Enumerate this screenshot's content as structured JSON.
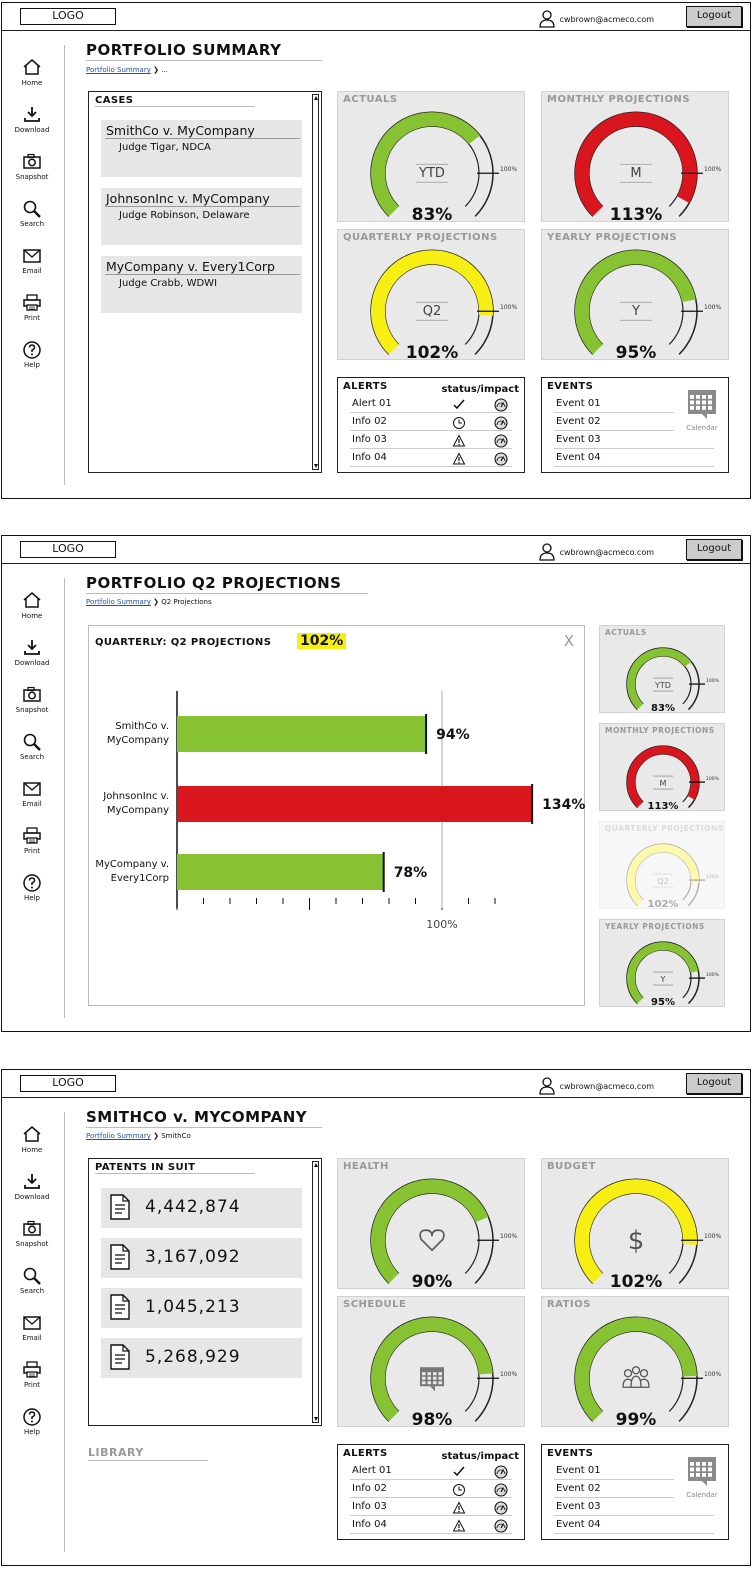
{
  "app": {
    "logo": "LOGO",
    "user_email": "cwbrown@acmeco.com",
    "logout_label": "Logout"
  },
  "sidebar": {
    "items": [
      {
        "label": "Home",
        "icon": "home-icon"
      },
      {
        "label": "Download",
        "icon": "download-icon"
      },
      {
        "label": "Snapshot",
        "icon": "camera-icon"
      },
      {
        "label": "Search",
        "icon": "search-icon"
      },
      {
        "label": "Email",
        "icon": "email-icon"
      },
      {
        "label": "Print",
        "icon": "print-icon"
      },
      {
        "label": "Help",
        "icon": "help-icon"
      }
    ]
  },
  "colors": {
    "green": "#86c232",
    "red": "#d9161d",
    "yellow": "#f7ef14",
    "gauge_bg": "#e9e9e9",
    "muted": "#999999"
  },
  "screen1": {
    "title": "PORTFOLIO SUMMARY",
    "breadcrumb": {
      "link": "Portfolio Summary",
      "current": "..."
    },
    "cases": {
      "title": "CASES",
      "items": [
        {
          "name": "SmithCo v. MyCompany",
          "judge": "Judge Tigar, NDCA"
        },
        {
          "name": "JohnsonInc v. MyCompany",
          "judge": "Judge Robinson, Delaware"
        },
        {
          "name": "MyCompany v. Every1Corp",
          "judge": "Judge Crabb, WDWI"
        }
      ]
    },
    "gauges": [
      {
        "title": "ACTUALS",
        "center": "YTD",
        "percent_label": "83%",
        "value": 83,
        "color": "#86c232"
      },
      {
        "title": "MONTHLY PROJECTIONS",
        "center": "M",
        "percent_label": "113%",
        "value": 113,
        "color": "#d9161d"
      },
      {
        "title": "QUARTERLY PROJECTIONS",
        "center": "Q2",
        "percent_label": "102%",
        "value": 102,
        "color": "#f7ef14"
      },
      {
        "title": "YEARLY PROJECTIONS",
        "center": "Y",
        "percent_label": "95%",
        "value": 95,
        "color": "#86c232"
      }
    ],
    "gauge_ref_label": "100%",
    "alerts": {
      "title": "ALERTS",
      "status_header": "status/impact",
      "items": [
        {
          "label": "Alert 01",
          "status_icon": "check-icon"
        },
        {
          "label": "Info 02",
          "status_icon": "clock-icon"
        },
        {
          "label": "Info 03",
          "status_icon": "warning-icon"
        },
        {
          "label": "Info 04",
          "status_icon": "warning-icon"
        }
      ]
    },
    "events": {
      "title": "EVENTS",
      "calendar_label": "Calendar",
      "items": [
        "Event 01",
        "Event 02",
        "Event 03",
        "Event 04"
      ]
    }
  },
  "screen2": {
    "title": "PORTFOLIO Q2 PROJECTIONS",
    "breadcrumb": {
      "link": "Portfolio Summary",
      "current": "Q2 Projections"
    },
    "chart_title": "QUARTERLY: Q2 PROJECTIONS",
    "chart_badge": "102%",
    "close_label": "X",
    "chart_data": {
      "type": "bar",
      "orientation": "horizontal",
      "categories": [
        [
          "SmithCo v.",
          "MyCompany"
        ],
        [
          "JohnsonInc v.",
          "MyCompany"
        ],
        [
          "MyCompany v.",
          "Every1Corp"
        ]
      ],
      "values": [
        94,
        134,
        78
      ],
      "value_labels": [
        "94%",
        "134%",
        "78%"
      ],
      "colors": [
        "#86c232",
        "#d9161d",
        "#86c232"
      ],
      "reference_line": 100,
      "reference_label": "100%",
      "xlim": [
        0,
        140
      ]
    },
    "side_gauges": [
      {
        "title": "ACTUALS",
        "center": "YTD",
        "percent_label": "83%",
        "value": 83,
        "color": "#86c232",
        "faded": false
      },
      {
        "title": "MONTHLY PROJECTIONS",
        "center": "M",
        "percent_label": "113%",
        "value": 113,
        "color": "#d9161d",
        "faded": false
      },
      {
        "title": "QUARTERLY PROJECTIONS",
        "center": "Q2",
        "percent_label": "102%",
        "value": 102,
        "color": "#f7ef14",
        "faded": true
      },
      {
        "title": "YEARLY PROJECTIONS",
        "center": "Y",
        "percent_label": "95%",
        "value": 95,
        "color": "#86c232",
        "faded": false
      }
    ]
  },
  "screen3": {
    "title": "SMITHCO v. MYCOMPANY",
    "breadcrumb": {
      "link": "Portfolio Summary",
      "current": "SmithCo"
    },
    "patents": {
      "title": "PATENTS IN SUIT",
      "items": [
        "4,442,874",
        "3,167,092",
        "1,045,213",
        "5,268,929"
      ]
    },
    "library_label": "LIBRARY",
    "gauges": [
      {
        "title": "HEALTH",
        "center_icon": "heart-icon",
        "percent_label": "90%",
        "value": 90,
        "color": "#86c232"
      },
      {
        "title": "BUDGET",
        "center_icon": "dollar-icon",
        "percent_label": "102%",
        "value": 102,
        "color": "#f7ef14"
      },
      {
        "title": "SCHEDULE",
        "center_icon": "calendar-icon",
        "percent_label": "98%",
        "value": 98,
        "color": "#86c232"
      },
      {
        "title": "RATIOS",
        "center_icon": "people-icon",
        "percent_label": "99%",
        "value": 99,
        "color": "#86c232"
      }
    ],
    "alerts": {
      "title": "ALERTS",
      "status_header": "status/impact",
      "items": [
        {
          "label": "Alert 01",
          "status_icon": "check-icon"
        },
        {
          "label": "Info 02",
          "status_icon": "clock-icon"
        },
        {
          "label": "Info 03",
          "status_icon": "warning-icon"
        },
        {
          "label": "Info 04",
          "status_icon": "warning-icon"
        }
      ]
    },
    "events": {
      "title": "EVENTS",
      "calendar_label": "Calendar",
      "items": [
        "Event 01",
        "Event 02",
        "Event 03",
        "Event 04"
      ]
    }
  }
}
